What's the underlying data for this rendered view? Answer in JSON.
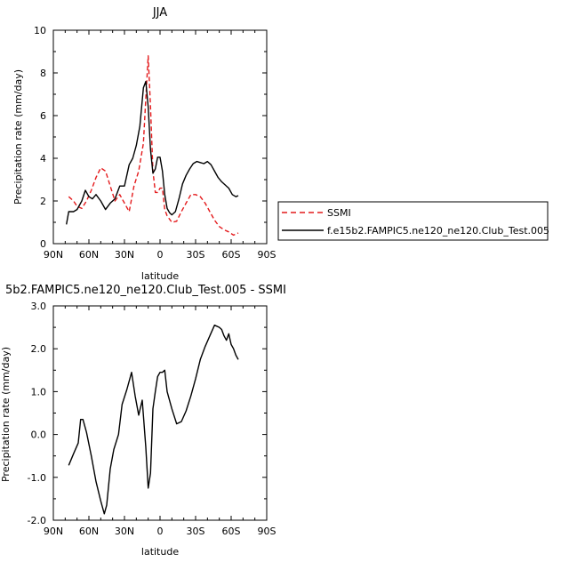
{
  "chart_data": [
    {
      "type": "line",
      "title": "JJA",
      "xlabel": "latitude",
      "ylabel": "Precipitation rate (mm/day)",
      "xlim": [
        90,
        -90
      ],
      "ylim": [
        0,
        10
      ],
      "xticks": [
        90,
        60,
        30,
        0,
        -30,
        -60,
        -90
      ],
      "xtick_labels": [
        "90N",
        "60N",
        "30N",
        "0",
        "30S",
        "60S",
        "90S"
      ],
      "yticks": [
        0,
        2,
        4,
        6,
        8,
        10
      ],
      "ytick_labels": [
        "0",
        "2",
        "4",
        "6",
        "8",
        "10"
      ],
      "legend_position": "right",
      "series": [
        {
          "name": "SSMI",
          "color": "#e41a1c",
          "dash": "dashed",
          "x": [
            77,
            73,
            70,
            66,
            62,
            58,
            54,
            50,
            46,
            42,
            38,
            34,
            30,
            26,
            22,
            18,
            14,
            12,
            10,
            8,
            6,
            4,
            2,
            0,
            -2,
            -4,
            -6,
            -10,
            -14,
            -18,
            -22,
            -26,
            -30,
            -34,
            -38,
            -42,
            -46,
            -50,
            -54,
            -58,
            -62,
            -64,
            -66
          ],
          "y": [
            2.2,
            2.0,
            1.75,
            1.65,
            2.0,
            2.5,
            3.1,
            3.55,
            3.4,
            2.7,
            2.0,
            2.3,
            1.9,
            1.5,
            2.7,
            3.4,
            4.7,
            6.8,
            8.8,
            6.4,
            3.4,
            2.4,
            2.4,
            2.6,
            2.6,
            1.6,
            1.3,
            1.0,
            1.05,
            1.5,
            1.9,
            2.3,
            2.3,
            2.2,
            1.9,
            1.5,
            1.1,
            0.8,
            0.65,
            0.55,
            0.4,
            0.45,
            0.5
          ]
        },
        {
          "name": "f.e15b2.FAMPIC5.ne120_ne120.Club_Test.005",
          "color": "#000000",
          "dash": "solid",
          "x": [
            79,
            77,
            73,
            70,
            66,
            63,
            60,
            57,
            54,
            50,
            46,
            42,
            38,
            34,
            30,
            26,
            23,
            20,
            17,
            14,
            12,
            10,
            8,
            6,
            4,
            2,
            0,
            -2,
            -4,
            -6,
            -8,
            -10,
            -13,
            -16,
            -19,
            -22,
            -25,
            -28,
            -31,
            -34,
            -37,
            -40,
            -43,
            -46,
            -49,
            -52,
            -55,
            -58,
            -61,
            -64,
            -66
          ],
          "y": [
            0.9,
            1.5,
            1.5,
            1.6,
            2.0,
            2.5,
            2.2,
            2.1,
            2.3,
            2.0,
            1.6,
            1.9,
            2.1,
            2.7,
            2.7,
            3.7,
            4.0,
            4.6,
            5.5,
            7.3,
            7.6,
            6.4,
            4.4,
            3.3,
            3.5,
            4.05,
            4.05,
            3.4,
            2.3,
            1.65,
            1.45,
            1.35,
            1.5,
            2.1,
            2.8,
            3.2,
            3.5,
            3.75,
            3.85,
            3.8,
            3.75,
            3.85,
            3.7,
            3.4,
            3.1,
            2.9,
            2.75,
            2.6,
            2.3,
            2.2,
            2.25
          ]
        }
      ]
    },
    {
      "type": "line",
      "title": "5b2.FAMPIC5.ne120_ne120.Club_Test.005 - SSMI",
      "xlabel": "latitude",
      "ylabel": "Precipitation rate (mm/day)",
      "xlim": [
        90,
        -90
      ],
      "ylim": [
        -2,
        3
      ],
      "xticks": [
        90,
        60,
        30,
        0,
        -30,
        -60,
        -90
      ],
      "xtick_labels": [
        "90N",
        "60N",
        "30N",
        "0",
        "30S",
        "60S",
        "90S"
      ],
      "yticks": [
        -2,
        -1,
        0,
        1,
        2,
        3
      ],
      "ytick_labels": [
        "-2.0",
        "-1.0",
        "0.0",
        "1.0",
        "2.0",
        "3.0"
      ],
      "series": [
        {
          "color": "#000000",
          "dash": "solid",
          "x": [
            77,
            73,
            69,
            67,
            65,
            62,
            58,
            54,
            50,
            47,
            45,
            42,
            39,
            35,
            32,
            28,
            24,
            21,
            18,
            15,
            12,
            10,
            8,
            6,
            4,
            2,
            0,
            -2,
            -4,
            -6,
            -10,
            -14,
            -18,
            -22,
            -26,
            -30,
            -34,
            -38,
            -42,
            -46,
            -50,
            -52,
            -54,
            -56,
            -58,
            -60,
            -62,
            -64,
            -66
          ],
          "y": [
            -0.72,
            -0.45,
            -0.2,
            0.35,
            0.35,
            0.05,
            -0.5,
            -1.1,
            -1.55,
            -1.85,
            -1.65,
            -0.8,
            -0.35,
            0.0,
            0.7,
            1.05,
            1.45,
            0.9,
            0.45,
            0.8,
            -0.3,
            -1.25,
            -0.9,
            0.6,
            1.0,
            1.35,
            1.45,
            1.45,
            1.5,
            1.0,
            0.6,
            0.25,
            0.3,
            0.55,
            0.9,
            1.3,
            1.75,
            2.05,
            2.3,
            2.55,
            2.5,
            2.45,
            2.3,
            2.2,
            2.35,
            2.1,
            2.0,
            1.85,
            1.75
          ]
        }
      ]
    }
  ]
}
